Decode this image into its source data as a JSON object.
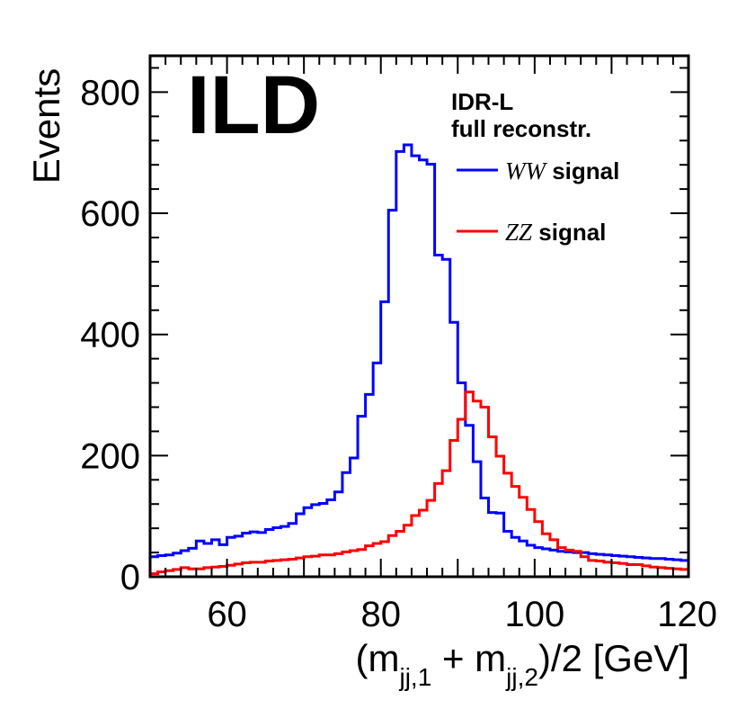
{
  "chart_data": {
    "type": "histogram",
    "title": "",
    "experiment_label": "ILD",
    "info_lines": [
      "IDR-L",
      "full reconstr."
    ],
    "xlabel": "(m",
    "xlabel_parts": {
      "open": "(m",
      "sub1": "jj,1",
      "plus": " + m",
      "sub2": "jj,2",
      "close": ")/2 [GeV]"
    },
    "ylabel": "Events",
    "xlim": [
      50,
      120
    ],
    "ylim": [
      0,
      860
    ],
    "x_ticks": [
      60,
      80,
      100,
      120
    ],
    "x_tick_labels": [
      "60",
      "80",
      "100",
      "120"
    ],
    "y_ticks": [
      0,
      200,
      400,
      600,
      800
    ],
    "y_tick_labels": [
      "0",
      "200",
      "400",
      "600",
      "800"
    ],
    "bin_width": 1,
    "series": [
      {
        "name": "WW signal",
        "legend_italic": "WW",
        "legend_text": " signal",
        "color": "#0000ff",
        "values": [
          33,
          35,
          36,
          39,
          43,
          47,
          59,
          55,
          61,
          53,
          65,
          67,
          72,
          74,
          73,
          78,
          81,
          83,
          88,
          104,
          114,
          119,
          121,
          127,
          140,
          172,
          196,
          265,
          301,
          353,
          454,
          605,
          702,
          713,
          695,
          688,
          681,
          531,
          524,
          420,
          320,
          250,
          190,
          130,
          106,
          105,
          75,
          65,
          59,
          52,
          48,
          46,
          44,
          42,
          41,
          40,
          40,
          38,
          37,
          36,
          35,
          34,
          33,
          32,
          31,
          30,
          30,
          29,
          28,
          27
        ]
      },
      {
        "name": "ZZ signal",
        "legend_italic": "ZZ",
        "legend_text": " signal",
        "color": "#ff0000",
        "values": [
          5,
          8,
          10,
          12,
          15,
          13,
          13,
          15,
          16,
          17,
          19,
          21,
          23,
          24,
          24,
          26,
          27,
          28,
          29,
          31,
          33,
          34,
          36,
          36,
          38,
          41,
          43,
          45,
          51,
          55,
          58,
          68,
          75,
          85,
          101,
          110,
          126,
          154,
          175,
          225,
          260,
          305,
          290,
          280,
          231,
          199,
          171,
          149,
          131,
          111,
          91,
          71,
          61,
          48,
          44,
          42,
          33,
          27,
          26,
          24,
          23,
          22,
          20,
          20,
          18,
          16,
          15,
          14,
          13,
          12
        ]
      }
    ]
  }
}
